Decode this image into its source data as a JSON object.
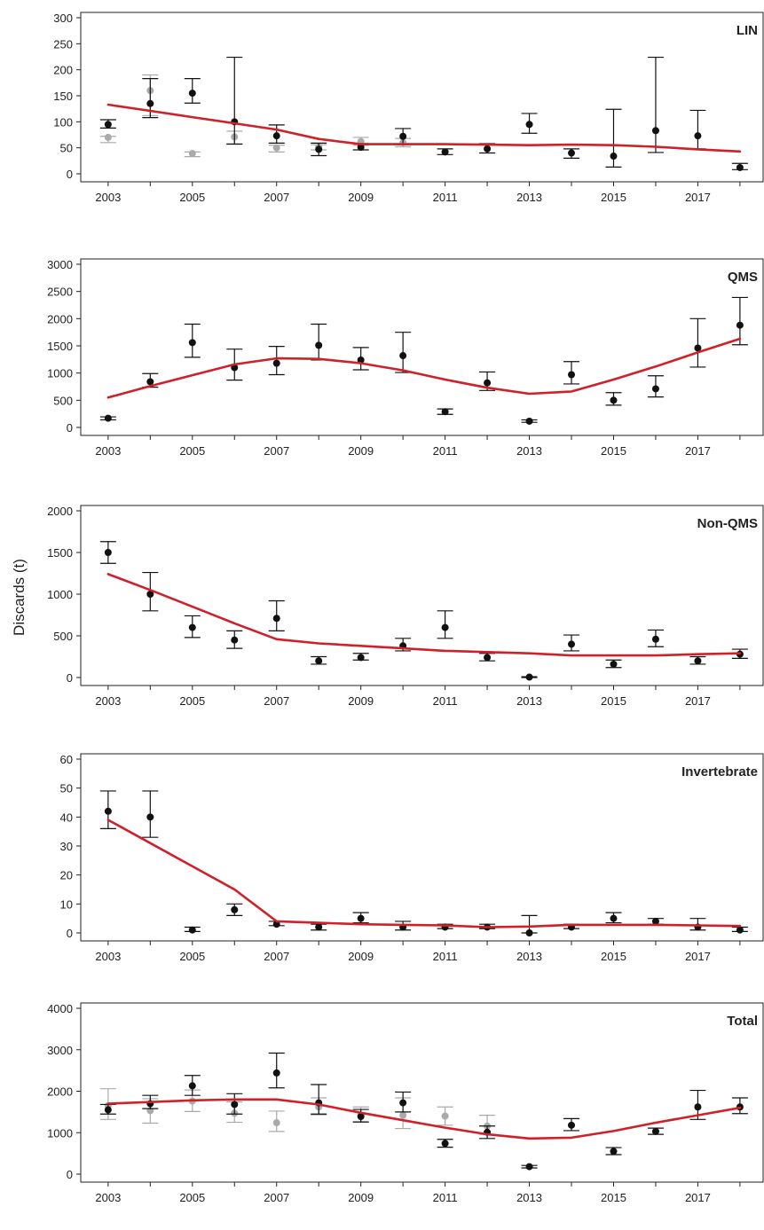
{
  "ylabel": "Discards (t)",
  "colors": {
    "fit": "#d0202a",
    "primary": "#111111",
    "secondary": "#aaaaaa",
    "axis": "#222222"
  },
  "chart_data": [
    {
      "type": "scatter",
      "title": "LIN",
      "ylim": [
        0,
        300
      ],
      "yticks": [
        0,
        50,
        100,
        150,
        200,
        250,
        300
      ],
      "xticks": [
        2003,
        2005,
        2007,
        2009,
        2011,
        2013,
        2015,
        2017
      ],
      "series": [
        {
          "style": "primary",
          "points": [
            {
              "x": 2003,
              "y": 95,
              "lo": 88,
              "hi": 104
            },
            {
              "x": 2004,
              "y": 135,
              "lo": 108,
              "hi": 183
            },
            {
              "x": 2005,
              "y": 155,
              "lo": 136,
              "hi": 183
            },
            {
              "x": 2006,
              "y": 100,
              "lo": 57,
              "hi": 224
            },
            {
              "x": 2007,
              "y": 73,
              "lo": 59,
              "hi": 94
            },
            {
              "x": 2008,
              "y": 47,
              "lo": 35,
              "hi": 59
            },
            {
              "x": 2009,
              "y": 51,
              "lo": 46,
              "hi": 58
            },
            {
              "x": 2010,
              "y": 72,
              "lo": 56,
              "hi": 87
            },
            {
              "x": 2011,
              "y": 42,
              "lo": 37,
              "hi": 48
            },
            {
              "x": 2012,
              "y": 48,
              "lo": 40,
              "hi": 58
            },
            {
              "x": 2013,
              "y": 95,
              "lo": 78,
              "hi": 116
            },
            {
              "x": 2014,
              "y": 40,
              "lo": 30,
              "hi": 48
            },
            {
              "x": 2015,
              "y": 34,
              "lo": 13,
              "hi": 124
            },
            {
              "x": 2016,
              "y": 83,
              "lo": 41,
              "hi": 224
            },
            {
              "x": 2017,
              "y": 73,
              "lo": 48,
              "hi": 122
            },
            {
              "x": 2018,
              "y": 12,
              "lo": 8,
              "hi": 20
            }
          ]
        },
        {
          "style": "secondary",
          "points": [
            {
              "x": 2003,
              "y": 70,
              "lo": 60,
              "hi": 72
            },
            {
              "x": 2004,
              "y": 160,
              "lo": 112,
              "hi": 190
            },
            {
              "x": 2005,
              "y": 39,
              "lo": 33,
              "hi": 42
            },
            {
              "x": 2006,
              "y": 71,
              "lo": 58,
              "hi": 82
            },
            {
              "x": 2007,
              "y": 50,
              "lo": 42,
              "hi": 55
            },
            {
              "x": 2008,
              "y": 52,
              "lo": 46,
              "hi": 56
            },
            {
              "x": 2009,
              "y": 62,
              "lo": 55,
              "hi": 70
            },
            {
              "x": 2010,
              "y": 60,
              "lo": 52,
              "hi": 68
            }
          ]
        }
      ],
      "fit": {
        "x": [
          2003,
          2004,
          2005,
          2006,
          2007,
          2008,
          2009,
          2010,
          2011,
          2012,
          2013,
          2014,
          2015,
          2016,
          2017,
          2018
        ],
        "y": [
          133,
          121,
          109,
          97,
          85,
          67,
          57,
          57,
          57,
          56,
          55,
          56,
          55,
          52,
          47,
          43
        ]
      }
    },
    {
      "type": "scatter",
      "title": "QMS",
      "ylim": [
        0,
        3000
      ],
      "yticks": [
        0,
        500,
        1000,
        1500,
        2000,
        2500,
        3000
      ],
      "xticks": [
        2003,
        2005,
        2007,
        2009,
        2011,
        2013,
        2015,
        2017
      ],
      "series": [
        {
          "style": "primary",
          "points": [
            {
              "x": 2003,
              "y": 170,
              "lo": 140,
              "hi": 195
            },
            {
              "x": 2004,
              "y": 840,
              "lo": 740,
              "hi": 990
            },
            {
              "x": 2005,
              "y": 1560,
              "lo": 1290,
              "hi": 1900
            },
            {
              "x": 2006,
              "y": 1100,
              "lo": 870,
              "hi": 1440
            },
            {
              "x": 2007,
              "y": 1180,
              "lo": 970,
              "hi": 1490
            },
            {
              "x": 2008,
              "y": 1510,
              "lo": 1240,
              "hi": 1900
            },
            {
              "x": 2009,
              "y": 1240,
              "lo": 1060,
              "hi": 1470
            },
            {
              "x": 2010,
              "y": 1320,
              "lo": 1010,
              "hi": 1750
            },
            {
              "x": 2011,
              "y": 290,
              "lo": 240,
              "hi": 340
            },
            {
              "x": 2012,
              "y": 820,
              "lo": 680,
              "hi": 1020
            },
            {
              "x": 2013,
              "y": 115,
              "lo": 95,
              "hi": 140
            },
            {
              "x": 2014,
              "y": 970,
              "lo": 800,
              "hi": 1210
            },
            {
              "x": 2015,
              "y": 500,
              "lo": 410,
              "hi": 640
            },
            {
              "x": 2016,
              "y": 710,
              "lo": 560,
              "hi": 950
            },
            {
              "x": 2017,
              "y": 1460,
              "lo": 1110,
              "hi": 2000
            },
            {
              "x": 2018,
              "y": 1880,
              "lo": 1520,
              "hi": 2390
            }
          ]
        }
      ],
      "fit": {
        "x": [
          2003,
          2004,
          2005,
          2006,
          2007,
          2008,
          2009,
          2010,
          2011,
          2012,
          2013,
          2014,
          2015,
          2016,
          2017,
          2018
        ],
        "y": [
          550,
          760,
          960,
          1160,
          1270,
          1260,
          1180,
          1050,
          880,
          730,
          620,
          660,
          880,
          1120,
          1380,
          1630
        ]
      }
    },
    {
      "type": "scatter",
      "title": "Non-QMS",
      "ylim": [
        0,
        2000
      ],
      "yticks": [
        0,
        500,
        1000,
        1500,
        2000
      ],
      "xticks": [
        2003,
        2005,
        2007,
        2009,
        2011,
        2013,
        2015,
        2017
      ],
      "series": [
        {
          "style": "primary",
          "points": [
            {
              "x": 2003,
              "y": 1500,
              "lo": 1370,
              "hi": 1630
            },
            {
              "x": 2004,
              "y": 1000,
              "lo": 800,
              "hi": 1260
            },
            {
              "x": 2005,
              "y": 600,
              "lo": 480,
              "hi": 740
            },
            {
              "x": 2006,
              "y": 450,
              "lo": 350,
              "hi": 560
            },
            {
              "x": 2007,
              "y": 710,
              "lo": 560,
              "hi": 920
            },
            {
              "x": 2008,
              "y": 200,
              "lo": 160,
              "hi": 250
            },
            {
              "x": 2009,
              "y": 240,
              "lo": 210,
              "hi": 290
            },
            {
              "x": 2010,
              "y": 380,
              "lo": 320,
              "hi": 470
            },
            {
              "x": 2011,
              "y": 600,
              "lo": 470,
              "hi": 800
            },
            {
              "x": 2012,
              "y": 240,
              "lo": 200,
              "hi": 290
            },
            {
              "x": 2013,
              "y": 5,
              "lo": 0,
              "hi": 10
            },
            {
              "x": 2014,
              "y": 400,
              "lo": 320,
              "hi": 510
            },
            {
              "x": 2015,
              "y": 160,
              "lo": 120,
              "hi": 210
            },
            {
              "x": 2016,
              "y": 460,
              "lo": 370,
              "hi": 570
            },
            {
              "x": 2017,
              "y": 200,
              "lo": 160,
              "hi": 250
            },
            {
              "x": 2018,
              "y": 280,
              "lo": 230,
              "hi": 340
            }
          ]
        }
      ],
      "fit": {
        "x": [
          2003,
          2004,
          2005,
          2006,
          2007,
          2008,
          2009,
          2010,
          2011,
          2012,
          2013,
          2014,
          2015,
          2016,
          2017,
          2018
        ],
        "y": [
          1240,
          1050,
          850,
          650,
          460,
          410,
          380,
          350,
          320,
          305,
          290,
          265,
          265,
          265,
          280,
          290
        ]
      }
    },
    {
      "type": "scatter",
      "title": "Invertebrate",
      "ylim": [
        0,
        60
      ],
      "yticks": [
        0,
        10,
        20,
        30,
        40,
        50,
        60
      ],
      "xticks": [
        2003,
        2005,
        2007,
        2009,
        2011,
        2013,
        2015,
        2017
      ],
      "series": [
        {
          "style": "primary",
          "points": [
            {
              "x": 2003,
              "y": 42,
              "lo": 36,
              "hi": 49
            },
            {
              "x": 2004,
              "y": 40,
              "lo": 33,
              "hi": 49
            },
            {
              "x": 2005,
              "y": 1,
              "lo": 0.5,
              "hi": 2
            },
            {
              "x": 2006,
              "y": 8,
              "lo": 6,
              "hi": 10
            },
            {
              "x": 2007,
              "y": 3,
              "lo": 2.5,
              "hi": 4
            },
            {
              "x": 2008,
              "y": 2,
              "lo": 1,
              "hi": 3
            },
            {
              "x": 2009,
              "y": 5,
              "lo": 3.5,
              "hi": 7
            },
            {
              "x": 2010,
              "y": 2,
              "lo": 1,
              "hi": 4
            },
            {
              "x": 2011,
              "y": 2,
              "lo": 1.5,
              "hi": 3
            },
            {
              "x": 2012,
              "y": 2,
              "lo": 1.5,
              "hi": 3
            },
            {
              "x": 2013,
              "y": 0,
              "lo": 0,
              "hi": 6
            },
            {
              "x": 2014,
              "y": 2,
              "lo": 1.5,
              "hi": 3
            },
            {
              "x": 2015,
              "y": 5,
              "lo": 3.5,
              "hi": 7
            },
            {
              "x": 2016,
              "y": 4,
              "lo": 3,
              "hi": 5
            },
            {
              "x": 2017,
              "y": 2,
              "lo": 1,
              "hi": 5
            },
            {
              "x": 2018,
              "y": 1,
              "lo": 0.5,
              "hi": 2
            }
          ]
        }
      ],
      "fit": {
        "x": [
          2003,
          2004,
          2005,
          2006,
          2007,
          2008,
          2009,
          2010,
          2011,
          2012,
          2013,
          2014,
          2015,
          2016,
          2017,
          2018
        ],
        "y": [
          39,
          31,
          23,
          15,
          4,
          3.5,
          3,
          2.8,
          2.6,
          2,
          2.2,
          2.8,
          2.8,
          2.8,
          2.6,
          2.4
        ]
      }
    },
    {
      "type": "scatter",
      "title": "Total",
      "ylim": [
        0,
        4000
      ],
      "yticks": [
        0,
        1000,
        2000,
        3000,
        4000
      ],
      "xticks": [
        2003,
        2005,
        2007,
        2009,
        2011,
        2013,
        2015,
        2017
      ],
      "series": [
        {
          "style": "primary",
          "points": [
            {
              "x": 2003,
              "y": 1550,
              "lo": 1450,
              "hi": 1680
            },
            {
              "x": 2004,
              "y": 1700,
              "lo": 1580,
              "hi": 1900
            },
            {
              "x": 2005,
              "y": 2130,
              "lo": 1900,
              "hi": 2380
            },
            {
              "x": 2006,
              "y": 1680,
              "lo": 1450,
              "hi": 1940
            },
            {
              "x": 2007,
              "y": 2440,
              "lo": 2080,
              "hi": 2920
            },
            {
              "x": 2008,
              "y": 1720,
              "lo": 1450,
              "hi": 2160
            },
            {
              "x": 2009,
              "y": 1390,
              "lo": 1260,
              "hi": 1560
            },
            {
              "x": 2010,
              "y": 1720,
              "lo": 1500,
              "hi": 1980
            },
            {
              "x": 2011,
              "y": 740,
              "lo": 650,
              "hi": 840
            },
            {
              "x": 2012,
              "y": 1010,
              "lo": 860,
              "hi": 1160
            },
            {
              "x": 2013,
              "y": 180,
              "lo": 150,
              "hi": 210
            },
            {
              "x": 2014,
              "y": 1180,
              "lo": 1050,
              "hi": 1340
            },
            {
              "x": 2015,
              "y": 550,
              "lo": 470,
              "hi": 640
            },
            {
              "x": 2016,
              "y": 1030,
              "lo": 960,
              "hi": 1110
            },
            {
              "x": 2017,
              "y": 1620,
              "lo": 1320,
              "hi": 2020
            },
            {
              "x": 2018,
              "y": 1620,
              "lo": 1460,
              "hi": 1840
            }
          ]
        },
        {
          "style": "secondary",
          "points": [
            {
              "x": 2003,
              "y": 1650,
              "lo": 1320,
              "hi": 2060
            },
            {
              "x": 2004,
              "y": 1530,
              "lo": 1230,
              "hi": 1820
            },
            {
              "x": 2005,
              "y": 1760,
              "lo": 1510,
              "hi": 2030
            },
            {
              "x": 2006,
              "y": 1470,
              "lo": 1250,
              "hi": 1740
            },
            {
              "x": 2007,
              "y": 1240,
              "lo": 1030,
              "hi": 1520
            },
            {
              "x": 2008,
              "y": 1620,
              "lo": 1430,
              "hi": 1840
            },
            {
              "x": 2009,
              "y": 1420,
              "lo": 1250,
              "hi": 1620
            },
            {
              "x": 2010,
              "y": 1420,
              "lo": 1100,
              "hi": 1840
            },
            {
              "x": 2011,
              "y": 1400,
              "lo": 1180,
              "hi": 1620
            },
            {
              "x": 2012,
              "y": 1160,
              "lo": 960,
              "hi": 1420
            }
          ]
        }
      ],
      "fit": {
        "x": [
          2003,
          2004,
          2005,
          2006,
          2007,
          2008,
          2009,
          2010,
          2011,
          2012,
          2013,
          2014,
          2015,
          2016,
          2017,
          2018
        ],
        "y": [
          1700,
          1740,
          1780,
          1800,
          1800,
          1680,
          1480,
          1300,
          1120,
          960,
          860,
          880,
          1040,
          1240,
          1420,
          1600
        ]
      }
    }
  ]
}
